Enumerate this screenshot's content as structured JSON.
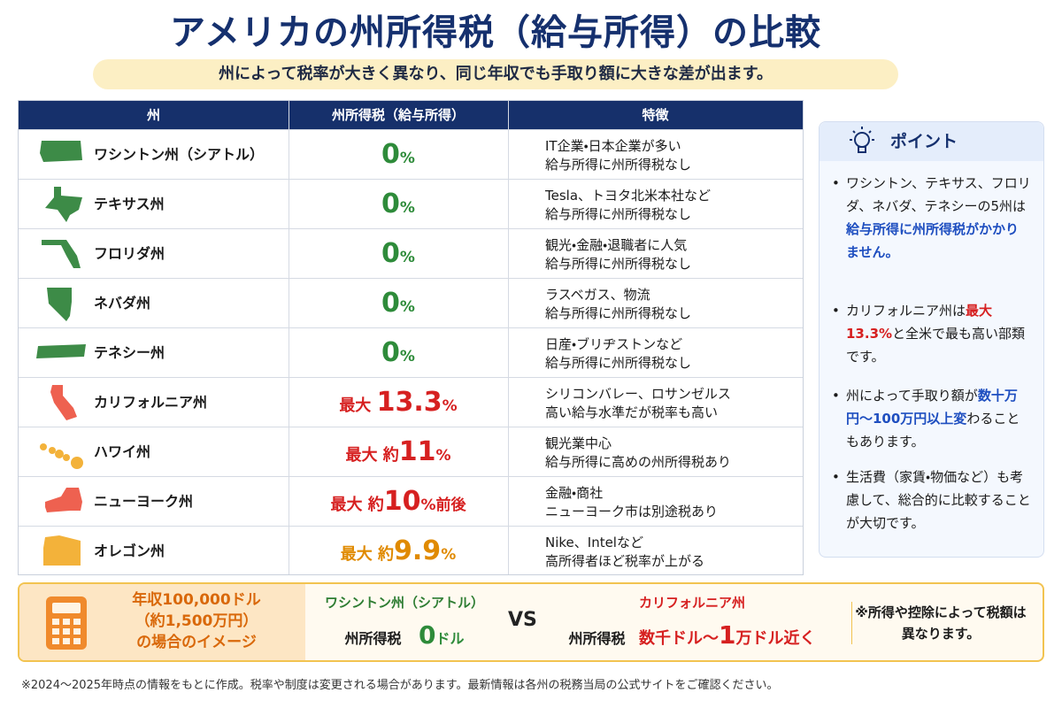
{
  "header": {
    "title": "アメリカの州所得税（給与所得）の比較",
    "subtitle": "州によって税率が大きく異なり、同じ年収でも手取り額に大きな差が出ます。"
  },
  "table": {
    "columns": [
      "州",
      "州所得税（給与所得）",
      "特徴"
    ],
    "rows": [
      {
        "state": "ワシントン州（シアトル）",
        "rate": {
          "number": "0",
          "unit": "%"
        },
        "notes": [
          "IT企業・日本企業が多い",
          "給与所得に州所得税なし"
        ]
      },
      {
        "state": "テキサス州",
        "rate": {
          "number": "0",
          "unit": "%"
        },
        "notes": [
          "Tesla、トヨタ北米本社など",
          "給与所得に州所得税なし"
        ]
      },
      {
        "state": "フロリダ州",
        "rate": {
          "number": "0",
          "unit": "%"
        },
        "notes": [
          "観光・金融・退職者に人気",
          "給与所得に州所得税なし"
        ]
      },
      {
        "state": "ネバダ州",
        "rate": {
          "number": "0",
          "unit": "%"
        },
        "notes": [
          "ラスベガス、物流",
          "給与所得に州所得税なし"
        ]
      },
      {
        "state": "テネシー州",
        "rate": {
          "number": "0",
          "unit": "%"
        },
        "notes": [
          "日産・ブリヂストンなど",
          "給与所得に州所得税なし"
        ]
      },
      {
        "state": "カリフォルニア州",
        "rate": {
          "prefix": "最大 ",
          "number": "13.3",
          "unit": "%"
        },
        "notes": [
          "シリコンバレー、ロサンゼルス",
          "高い給与水準だが税率も高い"
        ]
      },
      {
        "state": "ハワイ州",
        "rate": {
          "prefix": "最大 約",
          "number": "11",
          "unit": "%"
        },
        "notes": [
          "観光業中心",
          "給与所得に高めの州所得税あり"
        ]
      },
      {
        "state": "ニューヨーク州",
        "rate": {
          "prefix": "最大 約",
          "number": "10",
          "unit": "%前後"
        },
        "notes": [
          "金融・商社",
          "ニューヨーク市は別途税あり"
        ]
      },
      {
        "state": "オレゴン州",
        "rate": {
          "prefix": "最大 約",
          "number": "9.9",
          "unit": "%"
        },
        "notes": [
          "Nike、Intelなど",
          "高所得者ほど税率が上がる"
        ]
      }
    ]
  },
  "points": {
    "title": "ポイント",
    "items": [
      [
        {
          "text": "ワシントン、テキサス、フロリダ、ネバダ、テネシーの5州は"
        },
        {
          "text": "給与所得に州所得税がかかりません。",
          "style": "blue"
        }
      ],
      [
        {
          "text": "カリフォルニア州は"
        },
        {
          "text": "最大13.3%",
          "style": "red"
        },
        {
          "text": "と全米で最も高い部類です。"
        }
      ],
      [
        {
          "text": "州によって手取り額が"
        },
        {
          "text": "数十万円〜100万円以上変",
          "style": "blue"
        },
        {
          "text": "わることもあります。"
        }
      ],
      [
        {
          "text": "生活費（家賃・物価など）も考慮して、総合的に比較することが大切です。"
        }
      ]
    ]
  },
  "comparison": {
    "case": [
      "年収100,000ドル",
      "（約1,500万円）",
      "の場合のイメージ"
    ],
    "left": {
      "state": "ワシントン州（シアトル）",
      "label": "州所得税",
      "amount": "0",
      "unit": "ドル"
    },
    "vs": "VS",
    "right": {
      "state": "カリフォルニア州",
      "label": "州所得税",
      "amount_prefix": "数千ドル〜",
      "amount": "1",
      "unit": "万ドル近く"
    },
    "note": "※所得や控除によって税額は異なります。"
  },
  "footer": "※2024〜2025年時点の情報をもとに作成。税率や制度は変更される場合があります。最新情報は各州の税務当局の公式サイトをご確認ください。"
}
